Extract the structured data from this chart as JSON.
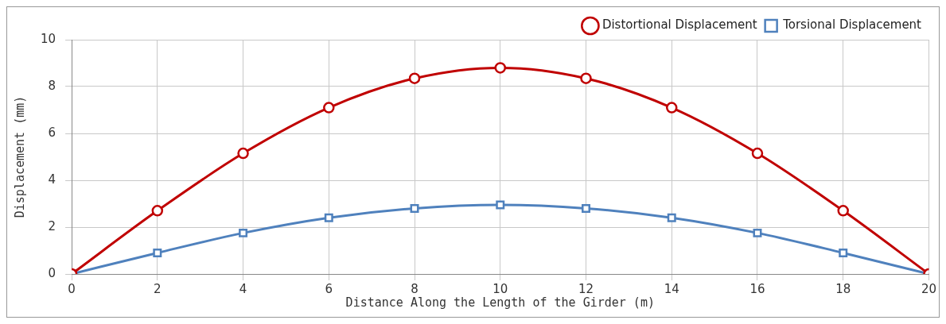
{
  "chart_data": {
    "type": "line",
    "xlabel": "Distance Along the Length of the Girder (m)",
    "ylabel": "Displacement (mm)",
    "x": [
      0,
      2,
      4,
      6,
      8,
      10,
      12,
      14,
      16,
      18,
      20
    ],
    "series": [
      {
        "name": "Distortional Displacement",
        "color": "#c00000",
        "marker": "circle",
        "values": [
          0,
          2.7,
          5.15,
          7.1,
          8.35,
          8.8,
          8.35,
          7.1,
          5.15,
          2.7,
          0
        ]
      },
      {
        "name": "Torsional Displacement",
        "color": "#4f81bd",
        "marker": "square",
        "values": [
          0,
          0.9,
          1.75,
          2.4,
          2.8,
          2.95,
          2.8,
          2.4,
          1.75,
          0.9,
          0
        ]
      }
    ],
    "xlim": [
      0,
      20
    ],
    "xticks": [
      0,
      2,
      4,
      6,
      8,
      10,
      12,
      14,
      16,
      18,
      20
    ],
    "ylim": [
      0,
      10
    ],
    "yticks": [
      0,
      2,
      4,
      6,
      8,
      10
    ],
    "grid": true,
    "legend": "top right",
    "line_style": "solid"
  }
}
